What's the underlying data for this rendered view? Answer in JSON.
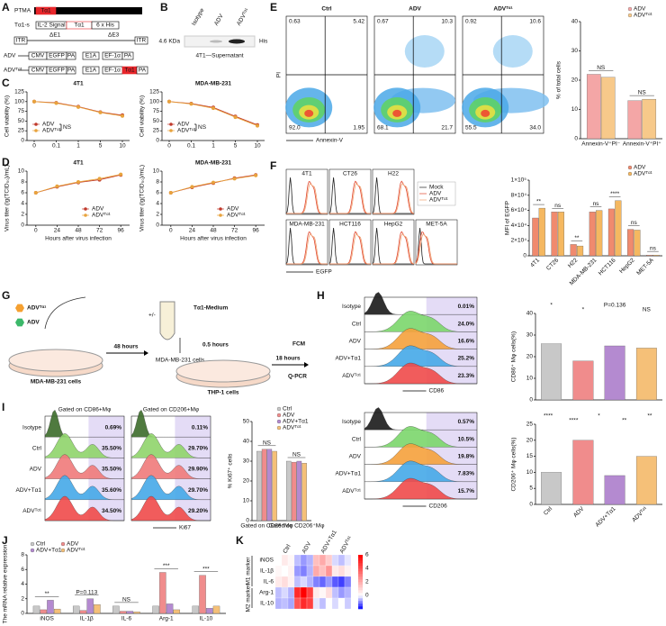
{
  "panel_labels": [
    "A",
    "B",
    "C",
    "D",
    "E",
    "F",
    "G",
    "H",
    "I",
    "J",
    "K"
  ],
  "A": {
    "ptma": "PTMA",
    "ta1": "Tα1",
    "ta1s": "Tα1-s",
    "signal": "IL-2 Signal",
    "his": "6 x His",
    "itr": "ITR",
    "de1": "ΔE1",
    "de3": "ΔE3",
    "adv": "ADV",
    "advt": "ADVᵀᵅ¹",
    "cmv": "CMV",
    "egfp": "EGFP",
    "e1a": "E1A",
    "ef": "EF-1α",
    "pa": "PA"
  },
  "B": {
    "lanes": [
      "Isotype",
      "ADV",
      "ADVᵀᵅ¹"
    ],
    "size": "4.6 KDa",
    "band": "His",
    "caption": "4T1—Supernatant"
  },
  "G": {
    "legend": [
      "ADVᵀᵅ¹",
      "ADV"
    ],
    "cells1": "MDA-MB-231 cells",
    "cells2": "MDA-MB-231 cells",
    "cells3": "THP-1 cells",
    "medium": "Tα1-Medium",
    "pm": "+/-",
    "t1": "48 hours",
    "t2": "0.5 hours",
    "t3": "18 hours",
    "fcm": "FCM",
    "qpcr": "Q-PCR"
  },
  "chart_data": [
    {
      "type": "line",
      "title": "4T1",
      "categories": [
        "0",
        "0.1",
        "1",
        "5",
        "10"
      ],
      "ylabel": "Cell viability (%)",
      "ylim": [
        0,
        125
      ],
      "yticks": [
        0,
        25,
        50,
        75,
        100,
        125
      ],
      "legend": "lower left",
      "annotation": "NS",
      "series": [
        {
          "name": "ADV",
          "color": "#c0392b",
          "values": [
            100,
            97,
            87,
            73,
            65
          ]
        },
        {
          "name": "ADVᵀᵅ¹",
          "color": "#e8a33d",
          "values": [
            100,
            96,
            86,
            72,
            63
          ]
        }
      ]
    },
    {
      "type": "line",
      "title": "MDA-MB-231",
      "categories": [
        "0",
        "0.1",
        "1",
        "5",
        "10"
      ],
      "ylabel": "Cell viability (%)",
      "ylim": [
        0,
        125
      ],
      "yticks": [
        0,
        25,
        50,
        75,
        100,
        125
      ],
      "legend": "lower left",
      "annotation": "NS",
      "series": [
        {
          "name": "ADV",
          "color": "#c0392b",
          "values": [
            100,
            95,
            85,
            62,
            40
          ]
        },
        {
          "name": "ADVᵀᵅ¹",
          "color": "#e8a33d",
          "values": [
            100,
            94,
            83,
            60,
            38
          ]
        }
      ]
    },
    {
      "type": "line",
      "title": "4T1",
      "x": [
        0,
        24,
        48,
        72,
        96
      ],
      "xlim": [
        -10,
        106
      ],
      "xticks": [
        0,
        24,
        48,
        72,
        96
      ],
      "xlabel": "Hours after virus infection",
      "ylabel": "Virus titer (lg(TCID₅₀)/mL)",
      "ylim": [
        0,
        10
      ],
      "yticks": [
        0,
        2,
        4,
        6,
        8,
        10
      ],
      "legend": "lower right",
      "series": [
        {
          "name": "ADV",
          "color": "#c0392b",
          "values": [
            6,
            7.1,
            7.9,
            8.4,
            9.3
          ]
        },
        {
          "name": "ADVᵀᵅ¹",
          "color": "#e8a33d",
          "values": [
            6,
            7.2,
            8,
            8.6,
            9.4
          ]
        }
      ]
    },
    {
      "type": "line",
      "title": "MDA-MB-231",
      "x": [
        0,
        24,
        48,
        72,
        96
      ],
      "xlim": [
        -10,
        106
      ],
      "xticks": [
        0,
        24,
        48,
        72,
        96
      ],
      "xlabel": "Hours after virus infection",
      "ylabel": "Virus titer (lg(TCID₅₀)/mL)",
      "ylim": [
        0,
        10
      ],
      "yticks": [
        0,
        2,
        4,
        6,
        8,
        10
      ],
      "legend": "lower right",
      "series": [
        {
          "name": "ADV",
          "color": "#c0392b",
          "values": [
            6,
            7,
            7.8,
            8.7,
            9.3
          ]
        },
        {
          "name": "ADVᵀᵅ¹",
          "color": "#e8a33d",
          "values": [
            6,
            7.1,
            7.9,
            8.6,
            9.2
          ]
        }
      ]
    },
    {
      "type": "flow_dot",
      "xlabel": "Annexin-V",
      "ylabel": "PI",
      "plots": [
        {
          "title": "Ctrl",
          "values": [
            0.63,
            5.42,
            92.0,
            1.95
          ],
          "value_labels": [
            "0.63",
            "5.42",
            "92.0",
            "1.95"
          ]
        },
        {
          "title": "ADV",
          "values": [
            0.67,
            10.3,
            68.1,
            21.7
          ],
          "value_labels": [
            "0.67",
            "10.3",
            "68.1",
            "21.7"
          ]
        },
        {
          "title": "ADVᵀᵅ¹",
          "values": [
            0.92,
            10.6,
            55.5,
            34.0
          ],
          "value_labels": [
            "0.92",
            "10.6",
            "55.5",
            "34.0"
          ]
        }
      ]
    },
    {
      "type": "bar",
      "categories": [
        "Annexin-V⁺PI⁻",
        "Annexin-V⁺PI⁺"
      ],
      "ylabel": "% of total cells",
      "ylim": [
        0,
        40
      ],
      "yticks": [
        0,
        10,
        20,
        30,
        40
      ],
      "annotations": [
        "NS",
        "NS"
      ],
      "legend": "upper right",
      "series": [
        {
          "name": "ADV",
          "color": "#f4a6a6",
          "values": [
            22,
            13
          ]
        },
        {
          "name": "ADVᵀᵅ¹",
          "color": "#f7c98a",
          "values": [
            21,
            13.5
          ]
        }
      ]
    },
    {
      "type": "flow_histogram",
      "xlabel": "EGFP",
      "plots": [
        "4T1",
        "CT26",
        "H22",
        "MDA-MB-231",
        "HCT116",
        "HepG2",
        "MET-5A"
      ],
      "legend": [
        "Mock",
        "ADV",
        "ADVᵀᵅ¹"
      ],
      "colors": [
        "#222222",
        "#e0452b",
        "#f0a070"
      ]
    },
    {
      "type": "bar",
      "categories": [
        "4T1",
        "CT26",
        "H22",
        "MDA-MB-231",
        "HCT116",
        "HepG2",
        "MET-5A"
      ],
      "ylabel": "MFI of EGFP",
      "ylim": [
        0,
        100000
      ],
      "yticks": [
        0,
        {
          "value": 20000,
          "label": "2×10⁴"
        },
        {
          "value": 40000,
          "label": "4×10⁴"
        },
        {
          "value": 60000,
          "label": "6×10⁴"
        },
        {
          "value": 80000,
          "label": "8×10⁴"
        },
        {
          "value": 100000,
          "label": "1×10⁵"
        }
      ],
      "annotations": [
        "**",
        "ns",
        "**",
        "ns",
        "****",
        "ns",
        "ns"
      ],
      "legend": "upper right",
      "xtick_rotation": 45,
      "series": [
        {
          "name": "ADV",
          "color": "#f08a6e",
          "values": [
            50000,
            58000,
            15000,
            58000,
            62000,
            35000,
            1000
          ]
        },
        {
          "name": "ADVᵀᵅ¹",
          "color": "#f5b860",
          "values": [
            63000,
            58000,
            13000,
            60000,
            73000,
            34000,
            1000
          ]
        }
      ]
    },
    {
      "type": "flow_histogram_stack",
      "rows": [
        "Isotype",
        "Ctrl",
        "ADV",
        "ADV+Tα1",
        "ADVᵀᵅ¹"
      ],
      "colors": [
        "#1a1a1a",
        "#7bd66b",
        "#f5a13c",
        "#45a8e8",
        "#ef4a4a"
      ],
      "values": [
        0.01,
        24.0,
        16.6,
        25.2,
        23.3
      ],
      "value_labels": [
        "0.01%",
        "24.0%",
        "16.6%",
        "25.2%",
        "23.3%"
      ],
      "xlabel": "CD86"
    },
    {
      "type": "bar",
      "values": [
        26,
        18,
        25,
        24
      ],
      "colors": [
        "#c8c8c8",
        "#f08c8c",
        "#b48ad0",
        "#f5c078"
      ],
      "ylabel": "CD86⁺ Mφ cells(%)",
      "ylim": [
        0,
        40
      ],
      "yticks": [
        0,
        10,
        20,
        30,
        40
      ],
      "annotations": [
        "*",
        "*",
        "P=0.136",
        "NS"
      ]
    },
    {
      "type": "flow_histogram_stack",
      "rows": [
        "Isotype",
        "Ctrl",
        "ADV",
        "ADV+Tα1",
        "ADVᵀᵅ¹"
      ],
      "colors": [
        "#1a1a1a",
        "#7bd66b",
        "#f5a13c",
        "#45a8e8",
        "#ef4a4a"
      ],
      "values": [
        0.57,
        10.5,
        19.8,
        7.83,
        15.7
      ],
      "value_labels": [
        "0.57%",
        "10.5%",
        "19.8%",
        "7.83%",
        "15.7%"
      ],
      "xlabel": "CD206"
    },
    {
      "type": "bar",
      "categories": [
        "Ctrl",
        "ADV",
        "ADV+Tα1",
        "ADVᵀᵅ¹"
      ],
      "values": [
        10,
        20,
        9,
        15
      ],
      "colors": [
        "#c8c8c8",
        "#f08c8c",
        "#b48ad0",
        "#f5c078"
      ],
      "ylabel": "CD206⁺ Mφ cells(%)",
      "ylim": [
        0,
        25
      ],
      "yticks": [
        0,
        5,
        10,
        15,
        20,
        25
      ],
      "annotations": [
        "****",
        "****",
        "*",
        "**",
        "**"
      ],
      "xtick_rotation": 45
    },
    {
      "type": "flow_histogram_stack",
      "rows": [
        "Isotype",
        "Ctrl",
        "ADV",
        "ADV+Tα1",
        "ADVᵀᵅ¹"
      ],
      "colors": [
        "#3c6b2a",
        "#8fd46a",
        "#f07a7a",
        "#45a8e8",
        "#ef4a4a"
      ],
      "xlabel": "Ki67",
      "panels": [
        {
          "title": "Gated on CD86+Mφ",
          "values": [
            0.69,
            35.5,
            35.5,
            35.6,
            34.5
          ],
          "value_labels": [
            "0.69%",
            "35.50%",
            "35.50%",
            "35.60%",
            "34.50%"
          ]
        },
        {
          "title": "Gated on CD206+Mφ",
          "values": [
            0.11,
            29.7,
            29.9,
            29.7,
            29.2
          ],
          "value_labels": [
            "0.11%",
            "29.70%",
            "29.90%",
            "29.70%",
            "29.20%"
          ]
        }
      ]
    },
    {
      "type": "bar",
      "categories": [
        "Gated on CD86⁺Mφ",
        "Gated on CD206⁺Mφ"
      ],
      "ylabel": "% Ki67⁺ cells",
      "ylim": [
        0,
        50
      ],
      "yticks": [
        0,
        10,
        20,
        30,
        40,
        50
      ],
      "annotations": [
        "NS",
        "NS"
      ],
      "legend": "upper right",
      "series": [
        {
          "name": "Ctrl",
          "color": "#c8c8c8",
          "values": [
            35,
            30
          ]
        },
        {
          "name": "ADV",
          "color": "#f08c8c",
          "values": [
            36,
            29.5
          ]
        },
        {
          "name": "ADV+Tα1",
          "color": "#b48ad0",
          "values": [
            36,
            30
          ]
        },
        {
          "name": "ADVᵀᵅ¹",
          "color": "#f5c078",
          "values": [
            35,
            29
          ]
        }
      ]
    },
    {
      "type": "bar",
      "categories": [
        "iNOS",
        "IL-1β",
        "IL-6",
        "Arg-1",
        "IL-10"
      ],
      "ylabel": "The mRNA relative expression",
      "ylim": [
        0,
        8
      ],
      "yticks": [
        0,
        2,
        4,
        6,
        8
      ],
      "annotations": [
        "**",
        "P=0.113",
        "NS",
        "***",
        "***"
      ],
      "legend": "upper left",
      "series": [
        {
          "name": "Ctrl",
          "color": "#c8c8c8",
          "values": [
            1,
            1,
            1,
            1,
            1
          ]
        },
        {
          "name": "ADV",
          "color": "#f08c8c",
          "values": [
            0.5,
            0.4,
            0.3,
            5.6,
            5.2
          ]
        },
        {
          "name": "ADV+Tα1",
          "color": "#b48ad0",
          "values": [
            1.8,
            2,
            0.3,
            1.3,
            0.7
          ]
        },
        {
          "name": "ADVᵀᵅ¹",
          "color": "#f5c078",
          "values": [
            0.6,
            1.2,
            0.2,
            0.5,
            1
          ]
        }
      ]
    },
    {
      "type": "heatmap",
      "columns": [
        "Ctrl",
        "ADV",
        "ADV+Tα1",
        "ADVᵀᵅ¹"
      ],
      "rows": [
        "iNOS",
        "IL-1β",
        "IL-6",
        "Arg-1",
        "IL-10"
      ],
      "row_groups": [
        "M1 marker",
        "M2 marker"
      ],
      "clim": [
        -2,
        6
      ],
      "cticks": [
        0,
        2,
        4,
        6
      ],
      "values": [
        [
          0,
          0.5,
          0.2,
          -0.5,
          -0.8,
          -0.6,
          1.5,
          2,
          1.2,
          -0.3,
          -0.5,
          -0.2
        ],
        [
          0.2,
          0,
          0.3,
          -0.8,
          -1,
          -0.6,
          2,
          1.5,
          2.5,
          0.5,
          0.8,
          0.3
        ],
        [
          0.5,
          0.8,
          0.3,
          -0.5,
          -0.3,
          -0.6,
          -1,
          -1.2,
          -0.8,
          -1.3,
          -1.5,
          -1
        ],
        [
          -0.5,
          -0.3,
          -0.6,
          5,
          6,
          4.5,
          0.5,
          0.2,
          0.8,
          -0.5,
          -0.8,
          -0.6
        ],
        [
          -0.6,
          -0.5,
          -0.7,
          4,
          5,
          4.5,
          -0.2,
          -0.5,
          0,
          -0.3,
          0,
          -0.4
        ]
      ]
    }
  ]
}
